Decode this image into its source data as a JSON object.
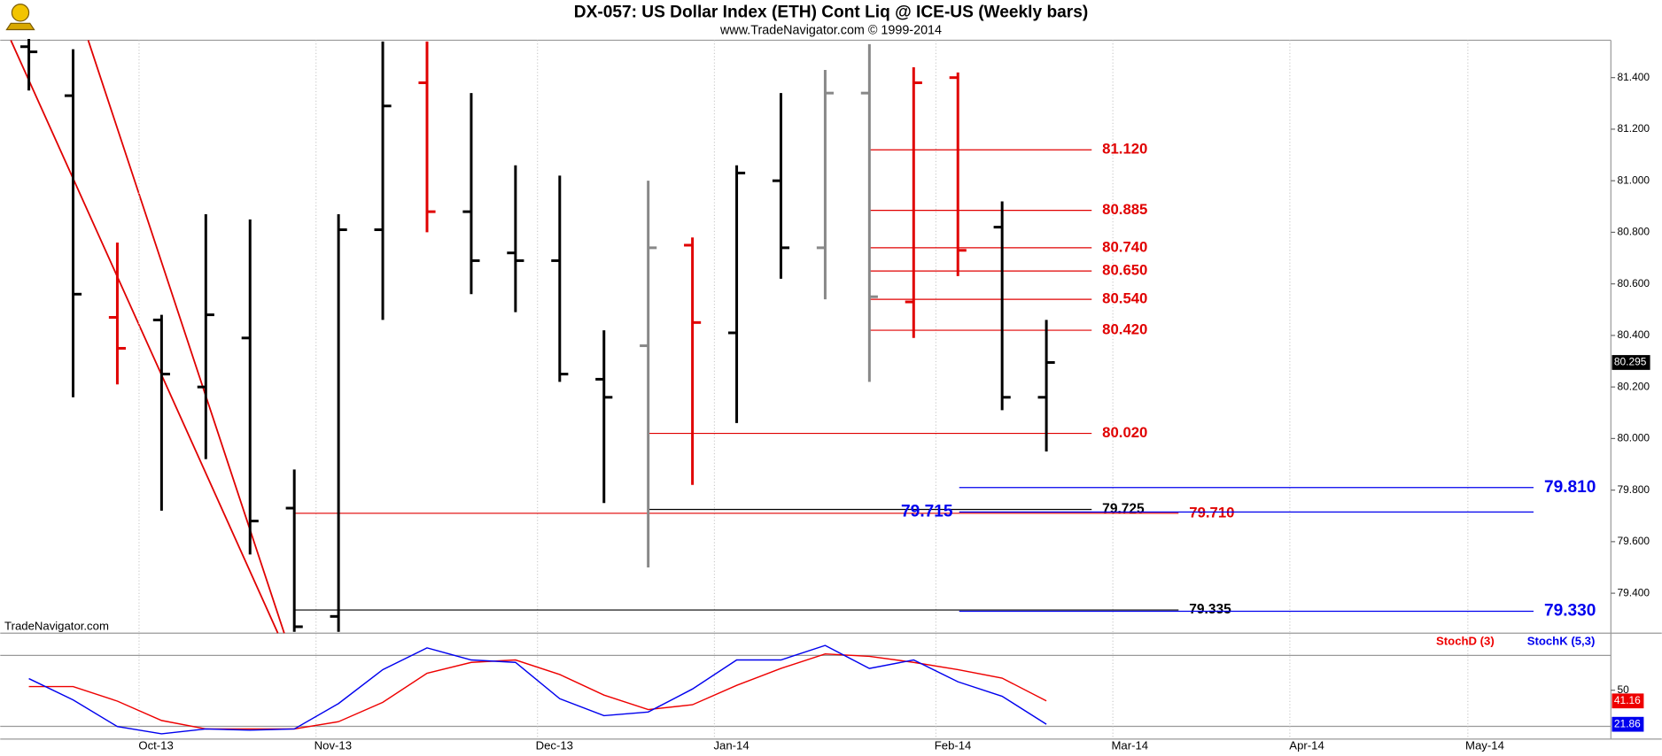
{
  "chart_data": [
    {
      "type": "ohlc",
      "title": "DX-057:  US Dollar Index (ETH) Cont Liq @ ICE-US  (Weekly bars)",
      "subtitle": "www.TradeNavigator.com © 1999-2014",
      "watermark": "TradeNavigator.com",
      "xticks": [
        "Oct-13",
        "Nov-13",
        "Dec-13",
        "Jan-14",
        "Feb-14",
        "Mar-14",
        "Apr-14",
        "May-14"
      ],
      "open": [
        81.52,
        81.33,
        80.47,
        80.46,
        80.2,
        80.39,
        79.73,
        79.31,
        80.81,
        81.38,
        80.88,
        80.72,
        80.69,
        80.23,
        80.36,
        80.75,
        80.41,
        81.0,
        80.74,
        81.34,
        80.53,
        81.4,
        80.82,
        80.16
      ],
      "high": [
        81.55,
        81.51,
        80.76,
        80.48,
        80.87,
        80.85,
        79.88,
        80.87,
        81.54,
        81.54,
        81.34,
        81.06,
        81.02,
        80.42,
        81.0,
        80.78,
        81.06,
        81.34,
        81.43,
        81.53,
        81.44,
        81.42,
        80.92,
        80.46
      ],
      "low": [
        81.35,
        80.16,
        80.21,
        79.72,
        79.92,
        79.55,
        79.25,
        79.25,
        80.46,
        80.8,
        80.56,
        80.49,
        80.22,
        79.75,
        79.5,
        79.82,
        80.06,
        80.62,
        80.54,
        80.22,
        80.39,
        80.63,
        80.11,
        79.95
      ],
      "close": [
        81.5,
        80.56,
        80.35,
        80.25,
        80.48,
        79.68,
        79.27,
        80.81,
        81.29,
        80.88,
        80.69,
        80.69,
        80.25,
        80.16,
        80.74,
        80.45,
        81.03,
        80.74,
        81.34,
        80.55,
        81.38,
        80.73,
        80.16,
        80.295
      ],
      "close_last_label": "80.295",
      "colors": [
        "#000000",
        "#000000",
        "#e00000",
        "#000000",
        "#000000",
        "#000000",
        "#000000",
        "#000000",
        "#000000",
        "#e00000",
        "#000000",
        "#000000",
        "#000000",
        "#000000",
        "#888888",
        "#e00000",
        "#000000",
        "#000000",
        "#888888",
        "#888888",
        "#e00000",
        "#e00000",
        "#000000",
        "#000000"
      ],
      "ylim": [
        79.245,
        81.545
      ],
      "yticks": [
        {
          "value": 79.4,
          "label": "79.400"
        },
        {
          "value": 79.6,
          "label": "79.600"
        },
        {
          "value": 79.8,
          "label": "79.800"
        },
        {
          "value": 80.0,
          "label": "80.000"
        },
        {
          "value": 80.2,
          "label": "80.200"
        },
        {
          "value": 80.4,
          "label": "80.400"
        },
        {
          "value": 80.6,
          "label": "80.600"
        },
        {
          "value": 80.8,
          "label": "80.800"
        },
        {
          "value": 81.0,
          "label": "81.000"
        },
        {
          "value": 81.2,
          "label": "81.200"
        },
        {
          "value": 81.4,
          "label": "81.400"
        }
      ],
      "levels": [
        {
          "value": 81.12,
          "label": "81.120",
          "color": "#e00000"
        },
        {
          "value": 80.885,
          "label": "80.885",
          "color": "#e00000"
        },
        {
          "value": 80.74,
          "label": "80.740",
          "color": "#e00000"
        },
        {
          "value": 80.65,
          "label": "80.650",
          "color": "#e00000"
        },
        {
          "value": 80.54,
          "label": "80.540",
          "color": "#e00000"
        },
        {
          "value": 80.42,
          "label": "80.420",
          "color": "#e00000"
        },
        {
          "value": 80.02,
          "label": "80.020",
          "color": "#e00000"
        },
        {
          "value": 79.725,
          "label": "79.725",
          "color": "#000000"
        },
        {
          "value": 79.71,
          "label": "79.710",
          "color": "#e00000"
        },
        {
          "value": 79.335,
          "label": "79.335",
          "color": "#000000"
        },
        {
          "value": 79.81,
          "label": "79.810",
          "color": "#0000ee"
        },
        {
          "value": 79.715,
          "label": "79.715",
          "color": "#0000ee"
        },
        {
          "value": 79.33,
          "label": "79.330",
          "color": "#0000ee"
        }
      ]
    },
    {
      "type": "line",
      "ylim": [
        10,
        98
      ],
      "yticks": [
        50
      ],
      "series": [
        {
          "name": "StochD (3)",
          "color": "#ee0000",
          "values": [
            53,
            53,
            41,
            25,
            18,
            18,
            18,
            24,
            40,
            64,
            73,
            75,
            63,
            46,
            34,
            38,
            54,
            68,
            80,
            78,
            73,
            67,
            60,
            41.16
          ]
        },
        {
          "name": "StochK (5,3)",
          "color": "#0000ee",
          "values": [
            59.6,
            42,
            20,
            14,
            18,
            17,
            18,
            39,
            67,
            85,
            75,
            73,
            43,
            29,
            32,
            51,
            75,
            75,
            87,
            68,
            75,
            57,
            45,
            21.86
          ]
        }
      ]
    }
  ]
}
